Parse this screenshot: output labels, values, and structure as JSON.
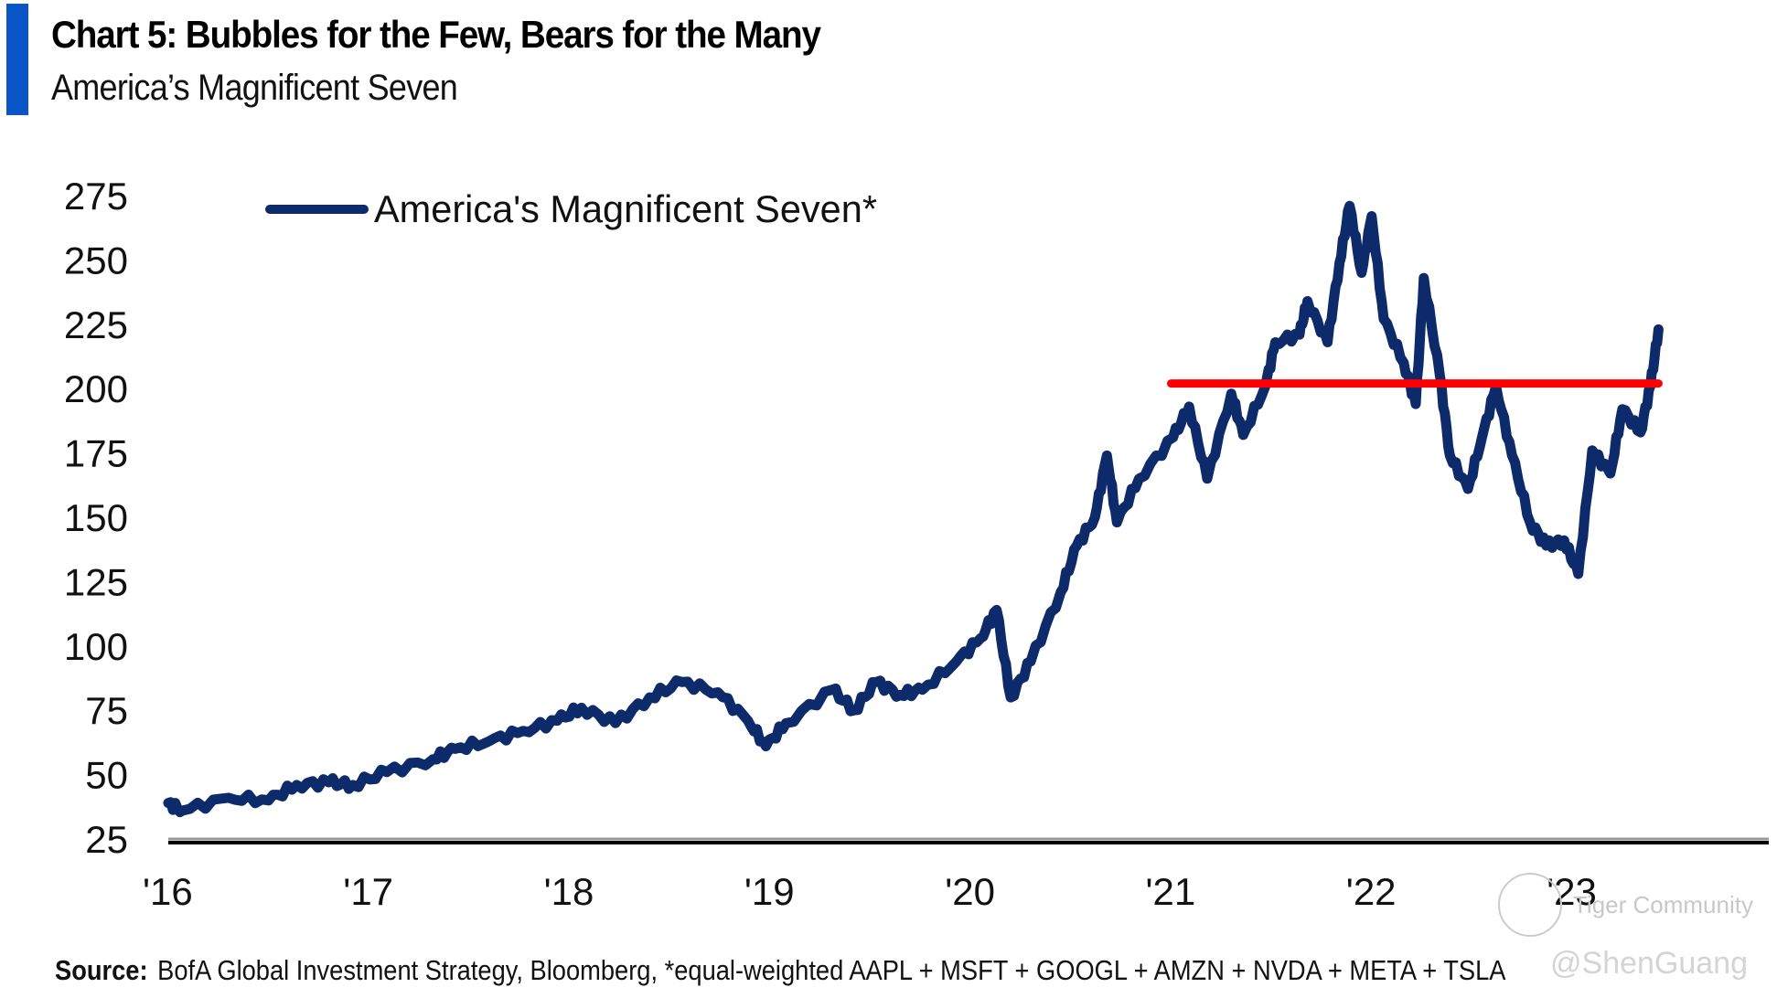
{
  "header": {
    "title": "Chart 5: Bubbles for the Few, Bears for the Many",
    "subtitle": "America’s Magnificent Seven",
    "accent_color": "#0a56c9"
  },
  "footer": {
    "source_label": "Source:",
    "source_text": "BofA Global Investment Strategy, Bloomberg, *equal-weighted AAPL + MSFT + GOOGL + AMZN + NVDA + META + TSLA"
  },
  "watermark": {
    "line1": "Tiger Community",
    "line2": "@ShenGuang"
  },
  "chart_data": {
    "type": "line",
    "title": "Chart 5: Bubbles for the Few, Bears for the Many",
    "subtitle": "America’s Magnificent Seven",
    "xlabel": "",
    "ylabel": "",
    "xlim": [
      2016,
      2024
    ],
    "ylim": [
      25,
      275
    ],
    "y_ticks": [
      "275",
      "250",
      "225",
      "200",
      "175",
      "150",
      "125",
      "100",
      "75",
      "50",
      "25"
    ],
    "y_tick_values": [
      275,
      250,
      225,
      200,
      175,
      150,
      125,
      100,
      75,
      50,
      25
    ],
    "x_ticks": [
      "'16",
      "'17",
      "'18",
      "'19",
      "'20",
      "'21",
      "'22",
      "'23"
    ],
    "x_tick_values": [
      2016,
      2017,
      2018,
      2019,
      2020,
      2021,
      2022,
      2023
    ],
    "grid": false,
    "legend_placement": "top-left",
    "series": [
      {
        "name": "America's Magnificent Seven*",
        "color": "#0d2a6b",
        "x": [
          2016.0,
          2016.07,
          2016.3,
          2016.5,
          2016.64,
          2016.8,
          2016.92,
          2017.09,
          2017.32,
          2017.43,
          2017.6,
          2017.77,
          2017.94,
          2018.06,
          2018.23,
          2018.4,
          2018.56,
          2018.74,
          2018.89,
          2018.98,
          2019.08,
          2019.31,
          2019.42,
          2019.53,
          2019.65,
          2019.76,
          2019.93,
          2020.05,
          2020.13,
          2020.2,
          2020.3,
          2020.45,
          2020.53,
          2020.62,
          2020.68,
          2020.73,
          2020.84,
          2021.01,
          2021.09,
          2021.18,
          2021.3,
          2021.36,
          2021.47,
          2021.52,
          2021.64,
          2021.68,
          2021.78,
          2021.84,
          2021.89,
          2021.95,
          2022.0,
          2022.06,
          2022.16,
          2022.22,
          2022.26,
          2022.34,
          2022.39,
          2022.48,
          2022.55,
          2022.62,
          2022.7,
          2022.79,
          2022.87,
          2022.96,
          2023.03,
          2023.1,
          2023.19,
          2023.25,
          2023.34,
          2023.39,
          2023.43
        ],
        "values": [
          39,
          36,
          41,
          40,
          46,
          47,
          46,
          51,
          56,
          60,
          63,
          67,
          71,
          76,
          70,
          80,
          86,
          82,
          71,
          61,
          70,
          83,
          75,
          86,
          81,
          83,
          94,
          103,
          114,
          80,
          94,
          121,
          139,
          150,
          174,
          148,
          165,
          181,
          193,
          165,
          198,
          182,
          201,
          218,
          221,
          234,
          218,
          249,
          271,
          245,
          267,
          227,
          210,
          194,
          243,
          205,
          174,
          161,
          181,
          201,
          174,
          148,
          139,
          141,
          128,
          176,
          167,
          192,
          183,
          201,
          223
        ]
      }
    ],
    "annotations": [
      {
        "type": "horizontal-line",
        "color": "#ff0000",
        "y": 202,
        "x_start": 2021.0,
        "x_end": 2023.43
      }
    ]
  }
}
